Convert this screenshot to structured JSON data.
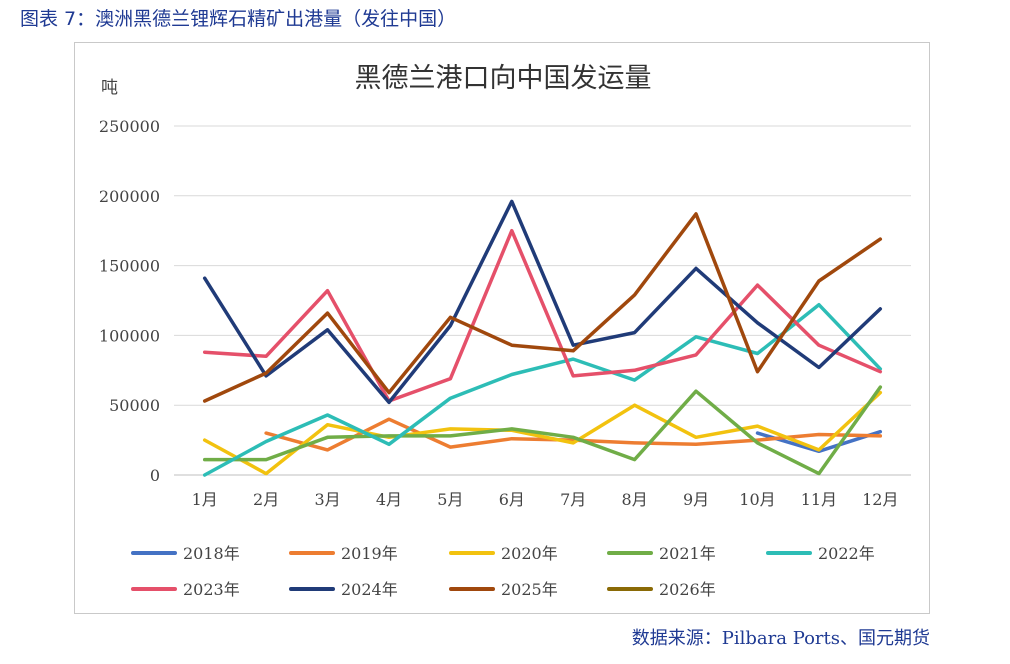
{
  "caption": "图表 7：澳洲黑德兰锂辉石精矿出港量（发往中国）",
  "source": "数据来源：Pilbara Ports、国元期货",
  "chart_data": {
    "type": "line",
    "title": "黑德兰港口向中国发运量",
    "ylabel": "吨",
    "xlabel": "",
    "ylim": [
      0,
      250000
    ],
    "yticks": [
      0,
      50000,
      100000,
      150000,
      200000,
      250000
    ],
    "ytick_labels": [
      "0",
      "50000",
      "100000",
      "150000",
      "200000",
      "250000"
    ],
    "grid": true,
    "legend_position": "bottom",
    "categories": [
      "1月",
      "2月",
      "3月",
      "4月",
      "5月",
      "6月",
      "7月",
      "8月",
      "9月",
      "10月",
      "11月",
      "12月"
    ],
    "series": [
      {
        "name": "2018年",
        "color": "#4472c4",
        "values": [
          null,
          null,
          null,
          null,
          null,
          null,
          null,
          null,
          null,
          30000,
          17000,
          31000
        ]
      },
      {
        "name": "2019年",
        "color": "#ed7d31",
        "values": [
          null,
          30000,
          18000,
          40000,
          20000,
          26000,
          25000,
          23000,
          22000,
          25000,
          29000,
          28000
        ]
      },
      {
        "name": "2020年",
        "color": "#f2c20f",
        "values": [
          25000,
          1000,
          36000,
          27000,
          33000,
          32000,
          23000,
          50000,
          27000,
          35000,
          18000,
          59000
        ]
      },
      {
        "name": "2021年",
        "color": "#70ad47",
        "values": [
          11000,
          11000,
          27000,
          28000,
          28000,
          33000,
          27000,
          11000,
          60000,
          23000,
          1000,
          63000
        ]
      },
      {
        "name": "2022年",
        "color": "#2dbdb6",
        "values": [
          0,
          24000,
          43000,
          22000,
          55000,
          72000,
          83000,
          68000,
          99000,
          87000,
          122000,
          76000
        ]
      },
      {
        "name": "2023年",
        "color": "#e5506a",
        "values": [
          88000,
          85000,
          132000,
          53000,
          69000,
          175000,
          71000,
          75000,
          86000,
          136000,
          93000,
          74000
        ]
      },
      {
        "name": "2024年",
        "color": "#203b78",
        "values": [
          141000,
          71000,
          104000,
          52000,
          107000,
          196000,
          93000,
          102000,
          148000,
          109000,
          77000,
          119000
        ]
      },
      {
        "name": "2025年",
        "color": "#a0480d",
        "values": [
          53000,
          73000,
          116000,
          59000,
          113000,
          93000,
          89000,
          129000,
          187000,
          74000,
          139000,
          169000
        ]
      },
      {
        "name": "2026年",
        "color": "#8a6a06",
        "values": [
          null,
          null,
          null,
          null,
          null,
          null,
          null,
          null,
          null,
          null,
          null,
          null
        ]
      }
    ]
  }
}
